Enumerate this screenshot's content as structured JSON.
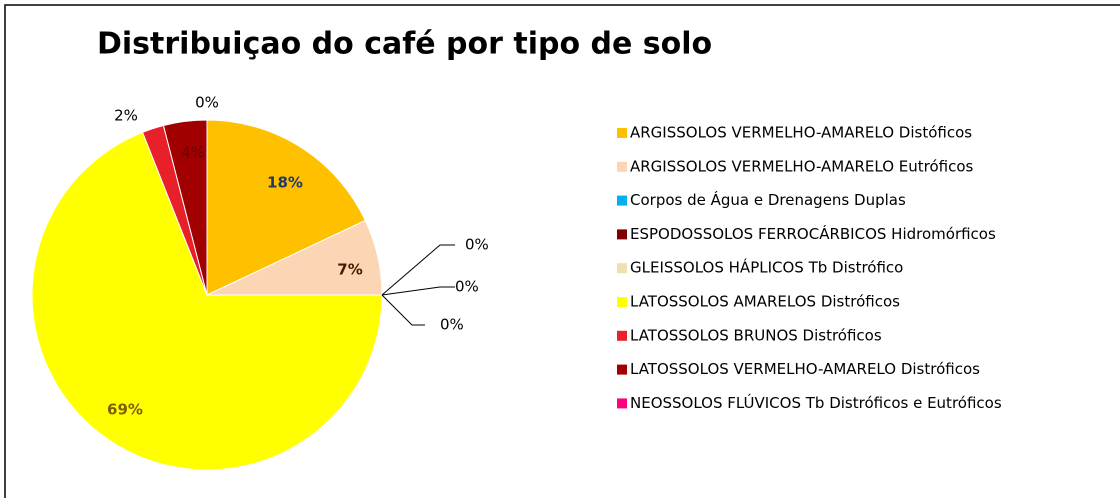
{
  "chart_data": {
    "type": "pie",
    "title": "Distribuiçao do café por tipo de solo",
    "categories": [
      "ARGISSOLOS VERMELHO-AMARELO  Distóficos",
      "ARGISSOLOS VERMELHO-AMARELO  Eutróficos",
      "Corpos de Água e Drenagens Duplas",
      "ESPODOSSOLOS FERROCÁRBICOS  Hidromórficos",
      "GLEISSOLOS HÁPLICOS Tb Distrófico",
      "LATOSSOLOS AMARELOS Distróficos",
      "LATOSSOLOS BRUNOS Distróficos",
      "LATOSSOLOS VERMELHO-AMARELO  Distróficos",
      "NEOSSOLOS FLÚVICOS Tb Distróficos e Eutróficos"
    ],
    "values": [
      18,
      7,
      0,
      0,
      0,
      69,
      2,
      4,
      0
    ],
    "value_labels": [
      "18%",
      "7%",
      "0%",
      "0%",
      "0%",
      "69%",
      "2%",
      "4%",
      "0%"
    ],
    "colors": [
      "#FFC000",
      "#FCD5B5",
      "#00B0F0",
      "#7F0000",
      "#EEE0B0",
      "#FFFF00",
      "#E8202A",
      "#A00000",
      "#FF0080"
    ],
    "legend": "right"
  }
}
